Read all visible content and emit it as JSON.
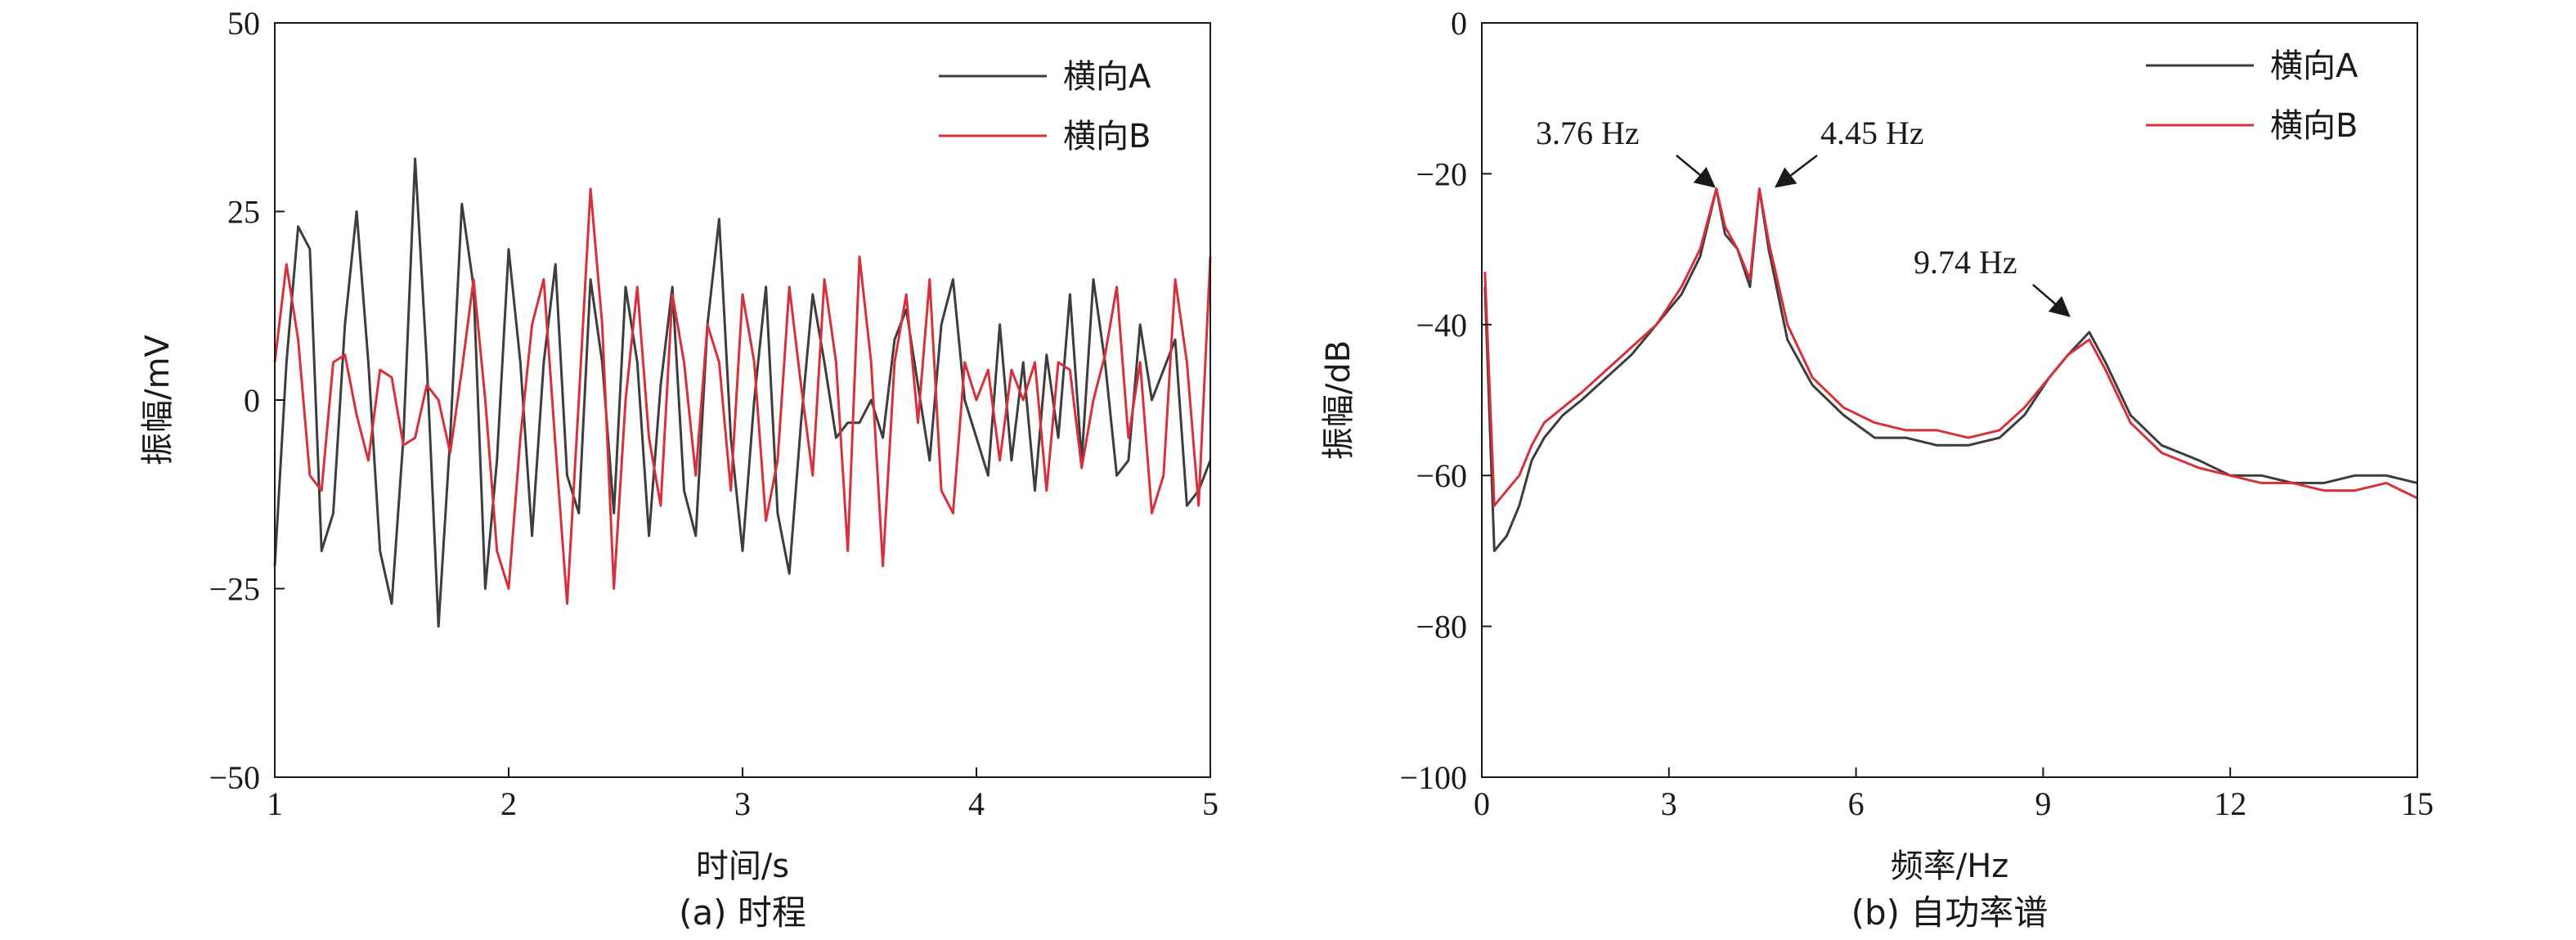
{
  "chart_data": [
    {
      "type": "line",
      "panel": "a",
      "caption": "(a) 时程",
      "xlabel": "时间/s",
      "ylabel": "振幅/mV",
      "xlim": [
        1,
        5
      ],
      "ylim": [
        -50,
        50
      ],
      "xticks": [
        1,
        2,
        3,
        4,
        5
      ],
      "xtick_labels": [
        "1",
        "2",
        "3",
        "4",
        "5"
      ],
      "yticks": [
        -50,
        -25,
        0,
        25,
        50
      ],
      "ytick_labels": [
        "−50",
        "−25",
        "0",
        "25",
        "50"
      ],
      "legend_position": "top-right",
      "grid": false,
      "series": [
        {
          "name": "横向A",
          "color": "#3d3d3d",
          "x": [
            1.0,
            1.05,
            1.1,
            1.15,
            1.2,
            1.25,
            1.3,
            1.35,
            1.4,
            1.45,
            1.5,
            1.55,
            1.6,
            1.65,
            1.7,
            1.75,
            1.8,
            1.85,
            1.9,
            1.95,
            2.0,
            2.05,
            2.1,
            2.15,
            2.2,
            2.25,
            2.3,
            2.35,
            2.4,
            2.45,
            2.5,
            2.55,
            2.6,
            2.65,
            2.7,
            2.75,
            2.8,
            2.85,
            2.9,
            2.95,
            3.0,
            3.05,
            3.1,
            3.15,
            3.2,
            3.25,
            3.3,
            3.35,
            3.4,
            3.45,
            3.5,
            3.55,
            3.6,
            3.65,
            3.7,
            3.75,
            3.8,
            3.85,
            3.9,
            3.95,
            4.0,
            4.05,
            4.1,
            4.15,
            4.2,
            4.25,
            4.3,
            4.35,
            4.4,
            4.45,
            4.5,
            4.55,
            4.6,
            4.65,
            4.7,
            4.75,
            4.8,
            4.85,
            4.9,
            4.95,
            5.0
          ],
          "values": [
            -22,
            5,
            23,
            20,
            -20,
            -15,
            10,
            25,
            5,
            -20,
            -27,
            -5,
            32,
            5,
            -30,
            -5,
            26,
            15,
            -25,
            -8,
            20,
            5,
            -18,
            5,
            18,
            -10,
            -15,
            16,
            5,
            -15,
            15,
            5,
            -18,
            2,
            15,
            -12,
            -18,
            10,
            24,
            -5,
            -20,
            0,
            15,
            -15,
            -23,
            -3,
            14,
            5,
            -5,
            -3,
            -3,
            0,
            -5,
            8,
            12,
            2,
            -8,
            10,
            16,
            0,
            -5,
            -10,
            10,
            -8,
            5,
            -12,
            6,
            -5,
            14,
            -8,
            16,
            5,
            -10,
            -8,
            10,
            0,
            4,
            8,
            -14,
            -12,
            -8
          ]
        },
        {
          "name": "横向B",
          "color": "#d6303d",
          "x": [
            1.0,
            1.05,
            1.1,
            1.15,
            1.2,
            1.25,
            1.3,
            1.35,
            1.4,
            1.45,
            1.5,
            1.55,
            1.6,
            1.65,
            1.7,
            1.75,
            1.8,
            1.85,
            1.9,
            1.95,
            2.0,
            2.05,
            2.1,
            2.15,
            2.2,
            2.25,
            2.3,
            2.35,
            2.4,
            2.45,
            2.5,
            2.55,
            2.6,
            2.65,
            2.7,
            2.75,
            2.8,
            2.85,
            2.9,
            2.95,
            3.0,
            3.05,
            3.1,
            3.15,
            3.2,
            3.25,
            3.3,
            3.35,
            3.4,
            3.45,
            3.5,
            3.55,
            3.6,
            3.65,
            3.7,
            3.75,
            3.8,
            3.85,
            3.9,
            3.95,
            4.0,
            4.05,
            4.1,
            4.15,
            4.2,
            4.25,
            4.3,
            4.35,
            4.4,
            4.45,
            4.5,
            4.55,
            4.6,
            4.65,
            4.7,
            4.75,
            4.8,
            4.85,
            4.9,
            4.95,
            5.0
          ],
          "values": [
            5,
            18,
            8,
            -10,
            -12,
            5,
            6,
            -2,
            -8,
            4,
            3,
            -6,
            -5,
            2,
            0,
            -7,
            4,
            16,
            0,
            -20,
            -25,
            -5,
            10,
            16,
            -6,
            -27,
            0,
            28,
            10,
            -25,
            0,
            15,
            -5,
            -14,
            14,
            5,
            -10,
            10,
            5,
            -12,
            14,
            5,
            -16,
            -8,
            15,
            2,
            -10,
            16,
            5,
            -20,
            19,
            5,
            -22,
            5,
            14,
            -3,
            16,
            -12,
            -15,
            5,
            0,
            4,
            -8,
            4,
            0,
            5,
            -12,
            5,
            4,
            -9,
            0,
            6,
            15,
            -5,
            5,
            -15,
            -10,
            16,
            5,
            -14,
            19
          ]
        }
      ]
    },
    {
      "type": "line",
      "panel": "b",
      "caption": "(b) 自功率谱",
      "xlabel": "频率/Hz",
      "ylabel": "振幅/dB",
      "xlim": [
        0,
        15
      ],
      "ylim": [
        -100,
        0
      ],
      "xticks": [
        0,
        3,
        6,
        9,
        12,
        15
      ],
      "xtick_labels": [
        "0",
        "3",
        "6",
        "9",
        "12",
        "15"
      ],
      "yticks": [
        -100,
        -80,
        -60,
        -40,
        -20,
        0
      ],
      "ytick_labels": [
        "−100",
        "−80",
        "−60",
        "−40",
        "−20",
        "0"
      ],
      "legend_position": "top-right",
      "grid": false,
      "series": [
        {
          "name": "横向A",
          "color": "#3d3d3d",
          "x": [
            0.05,
            0.2,
            0.4,
            0.6,
            0.8,
            1.0,
            1.3,
            1.6,
            2.0,
            2.4,
            2.8,
            3.2,
            3.5,
            3.76,
            3.9,
            4.1,
            4.3,
            4.45,
            4.6,
            4.9,
            5.3,
            5.8,
            6.3,
            6.8,
            7.3,
            7.8,
            8.3,
            8.7,
            9.1,
            9.4,
            9.74,
            10.0,
            10.4,
            10.9,
            11.5,
            12.0,
            12.5,
            13.0,
            13.5,
            14.0,
            14.5,
            15.0
          ],
          "values": [
            -35,
            -70,
            -68,
            -64,
            -58,
            -55,
            -52,
            -50,
            -47,
            -44,
            -40,
            -36,
            -31,
            -22,
            -28,
            -30,
            -35,
            -22,
            -30,
            -42,
            -48,
            -52,
            -55,
            -55,
            -56,
            -56,
            -55,
            -52,
            -47,
            -44,
            -41,
            -45,
            -52,
            -56,
            -58,
            -60,
            -60,
            -61,
            -61,
            -60,
            -60,
            -61
          ]
        },
        {
          "name": "横向B",
          "color": "#d6303d",
          "x": [
            0.05,
            0.2,
            0.4,
            0.6,
            0.8,
            1.0,
            1.3,
            1.6,
            2.0,
            2.4,
            2.8,
            3.2,
            3.5,
            3.76,
            3.9,
            4.1,
            4.3,
            4.45,
            4.6,
            4.9,
            5.3,
            5.8,
            6.3,
            6.8,
            7.3,
            7.8,
            8.3,
            8.7,
            9.1,
            9.4,
            9.74,
            10.0,
            10.4,
            10.9,
            11.5,
            12.0,
            12.5,
            13.0,
            13.5,
            14.0,
            14.5,
            15.0
          ],
          "values": [
            -33,
            -64,
            -62,
            -60,
            -56,
            -53,
            -51,
            -49,
            -46,
            -43,
            -40,
            -35,
            -30,
            -22,
            -27,
            -30,
            -34,
            -22,
            -29,
            -40,
            -47,
            -51,
            -53,
            -54,
            -54,
            -55,
            -54,
            -51,
            -47,
            -44,
            -42,
            -46,
            -53,
            -57,
            -59,
            -60,
            -61,
            -61,
            -62,
            -62,
            -61,
            -63
          ]
        }
      ],
      "annotations": [
        {
          "text": "3.76 Hz",
          "x": 3.76,
          "y": -22
        },
        {
          "text": "4.45 Hz",
          "x": 4.45,
          "y": -22
        },
        {
          "text": "9.74 Hz",
          "x": 9.74,
          "y": -41
        }
      ]
    }
  ]
}
